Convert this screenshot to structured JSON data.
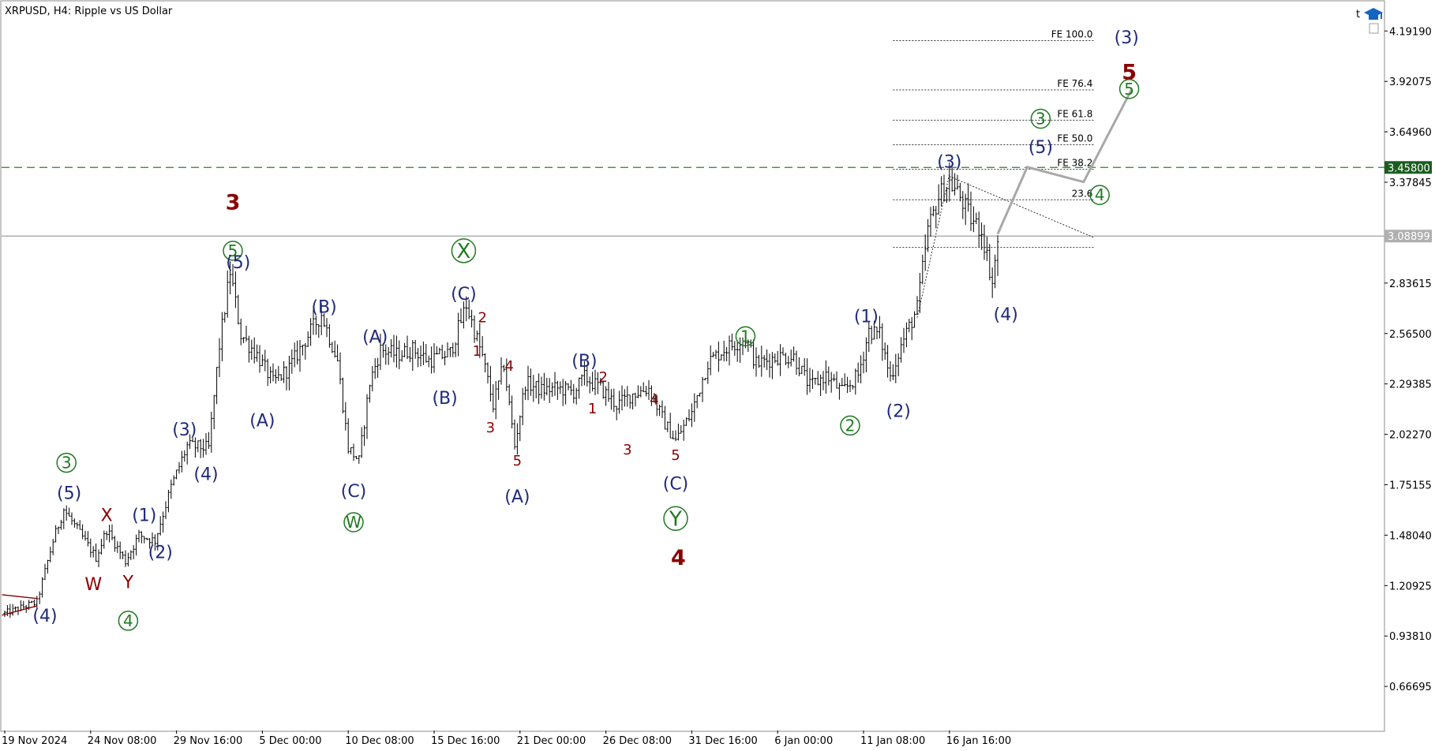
{
  "chart_data": {
    "type": "candlestick-ohlc",
    "title": "XRPUSD, H4:  Ripple vs US Dollar",
    "symbol": "XRPUSD",
    "timeframe": "H4",
    "description": "Ripple vs US Dollar",
    "ylim": [
      0.43,
      4.35
    ],
    "y_ticks": [
      "4.19190",
      "3.92075",
      "3.64960",
      "3.37845",
      "2.83615",
      "2.56500",
      "2.29385",
      "2.02270",
      "1.75155",
      "1.48040",
      "1.20925",
      "0.93810",
      "0.66695"
    ],
    "x_ticks": [
      "19 Nov 2024",
      "24 Nov 08:00",
      "29 Nov 16:00",
      "5 Dec 00:00",
      "10 Dec 08:00",
      "15 Dec 16:00",
      "21 Dec 00:00",
      "26 Dec 08:00",
      "31 Dec 16:00",
      "6 Jan 00:00",
      "11 Jan 08:00",
      "16 Jan 16:00"
    ],
    "x_tick_bar_index": [
      0,
      32,
      64,
      96,
      128,
      160,
      192,
      224,
      256,
      288,
      320,
      352
    ],
    "horizontal_lines": [
      {
        "price": 3.458,
        "label": "3.45800",
        "style": "dashed",
        "color": "#2e7d32"
      },
      {
        "price": 3.08899,
        "label": "3.08899",
        "style": "solid",
        "color": "#a0a0a0"
      }
    ],
    "fib_levels": [
      {
        "label": "FE 100.0",
        "price": 4.14
      },
      {
        "label": "FE 76.4",
        "price": 3.875
      },
      {
        "label": "FE 61.8",
        "price": 3.712
      },
      {
        "label": "FE 50.0",
        "price": 3.58
      },
      {
        "label": "FE 38.2",
        "price": 3.448
      },
      {
        "label": "23.6",
        "price": 3.284
      },
      {
        "label": "",
        "price": 3.028
      }
    ],
    "fib_x_range": [
      331,
      406
    ],
    "series": [
      {
        "name": "price",
        "points": [
          [
            0,
            1.06
          ],
          [
            12,
            1.12
          ],
          [
            18,
            1.45
          ],
          [
            22,
            1.62
          ],
          [
            28,
            1.49
          ],
          [
            34,
            1.36
          ],
          [
            38,
            1.51
          ],
          [
            45,
            1.34
          ],
          [
            50,
            1.48
          ],
          [
            56,
            1.45
          ],
          [
            62,
            1.74
          ],
          [
            68,
            1.96
          ],
          [
            76,
            1.95
          ],
          [
            80,
            2.5
          ],
          [
            84,
            2.9
          ],
          [
            88,
            2.56
          ],
          [
            94,
            2.45
          ],
          [
            100,
            2.3
          ],
          [
            106,
            2.38
          ],
          [
            112,
            2.53
          ],
          [
            118,
            2.67
          ],
          [
            124,
            2.42
          ],
          [
            128,
            1.95
          ],
          [
            132,
            1.88
          ],
          [
            136,
            2.3
          ],
          [
            140,
            2.48
          ],
          [
            146,
            2.45
          ],
          [
            152,
            2.48
          ],
          [
            158,
            2.42
          ],
          [
            166,
            2.46
          ],
          [
            172,
            2.72
          ],
          [
            178,
            2.44
          ],
          [
            182,
            2.18
          ],
          [
            186,
            2.4
          ],
          [
            190,
            1.96
          ],
          [
            194,
            2.3
          ],
          [
            200,
            2.26
          ],
          [
            206,
            2.27
          ],
          [
            212,
            2.25
          ],
          [
            216,
            2.33
          ],
          [
            222,
            2.27
          ],
          [
            228,
            2.18
          ],
          [
            234,
            2.24
          ],
          [
            240,
            2.27
          ],
          [
            246,
            2.08
          ],
          [
            250,
            1.99
          ],
          [
            256,
            2.14
          ],
          [
            262,
            2.41
          ],
          [
            268,
            2.48
          ],
          [
            276,
            2.54
          ],
          [
            280,
            2.4
          ],
          [
            288,
            2.44
          ],
          [
            294,
            2.44
          ],
          [
            300,
            2.28
          ],
          [
            306,
            2.34
          ],
          [
            312,
            2.25
          ],
          [
            318,
            2.34
          ],
          [
            322,
            2.58
          ],
          [
            326,
            2.56
          ],
          [
            330,
            2.33
          ],
          [
            334,
            2.5
          ],
          [
            340,
            2.7
          ],
          [
            344,
            3.12
          ],
          [
            348,
            3.3
          ],
          [
            352,
            3.38
          ],
          [
            356,
            3.3
          ],
          [
            360,
            3.18
          ],
          [
            364,
            3.12
          ],
          [
            368,
            2.84
          ],
          [
            370,
            3.06
          ]
        ]
      }
    ],
    "projection_path": [
      [
        370,
        3.1
      ],
      [
        381,
        3.46
      ],
      [
        402,
        3.38
      ],
      [
        420,
        3.88
      ]
    ],
    "triangle_lines": [
      {
        "from": [
          -1,
          1.16
        ],
        "to": [
          12,
          1.14
        ],
        "color": "#8b0000"
      },
      {
        "from": [
          -1,
          1.05
        ],
        "to": [
          12,
          1.1
        ],
        "color": "#8b0000"
      },
      {
        "from": [
          352,
          3.41
        ],
        "to": [
          406,
          3.08
        ],
        "color": "#000000"
      },
      {
        "from": [
          340,
          2.65
        ],
        "to": [
          352,
          3.42
        ],
        "color": "#000000"
      }
    ],
    "wave_labels": [
      {
        "text": "(4)",
        "x": 15,
        "y": 1.05,
        "color": "#1f2a7a",
        "size": "normal"
      },
      {
        "text": "(5)",
        "x": 24,
        "y": 1.71,
        "color": "#1f2a7a",
        "size": "normal"
      },
      {
        "text": "3",
        "x": 23,
        "y": 1.87,
        "color": "#1f7a1f",
        "size": "circled"
      },
      {
        "text": "W",
        "x": 33,
        "y": 1.22,
        "color": "#8b0000",
        "size": "normal"
      },
      {
        "text": "X",
        "x": 38,
        "y": 1.59,
        "color": "#8b0000",
        "size": "normal"
      },
      {
        "text": "Y",
        "x": 46,
        "y": 1.23,
        "color": "#8b0000",
        "size": "normal"
      },
      {
        "text": "4",
        "x": 46,
        "y": 1.02,
        "color": "#1f7a1f",
        "size": "circled"
      },
      {
        "text": "(1)",
        "x": 52,
        "y": 1.59,
        "color": "#1f2a7a",
        "size": "normal"
      },
      {
        "text": "(2)",
        "x": 58,
        "y": 1.39,
        "color": "#1f2a7a",
        "size": "normal"
      },
      {
        "text": "(3)",
        "x": 67,
        "y": 2.05,
        "color": "#1f2a7a",
        "size": "normal"
      },
      {
        "text": "(4)",
        "x": 75,
        "y": 1.81,
        "color": "#1f2a7a",
        "size": "normal"
      },
      {
        "text": "3",
        "x": 85,
        "y": 3.27,
        "color": "#8b0000",
        "size": "big"
      },
      {
        "text": "5",
        "x": 85,
        "y": 3.01,
        "color": "#1f7a1f",
        "size": "circled"
      },
      {
        "text": "(5)",
        "x": 87,
        "y": 2.95,
        "color": "#1f2a7a",
        "size": "normal"
      },
      {
        "text": "(A)",
        "x": 96,
        "y": 2.1,
        "color": "#1f2a7a",
        "size": "normal"
      },
      {
        "text": "(B)",
        "x": 119,
        "y": 2.71,
        "color": "#1f2a7a",
        "size": "normal"
      },
      {
        "text": "(A)",
        "x": 138,
        "y": 2.55,
        "color": "#1f2a7a",
        "size": "normal"
      },
      {
        "text": "(C)",
        "x": 130,
        "y": 1.72,
        "color": "#1f2a7a",
        "size": "normal"
      },
      {
        "text": "W",
        "x": 130,
        "y": 1.55,
        "color": "#1f7a1f",
        "size": "circled"
      },
      {
        "text": "(B)",
        "x": 164,
        "y": 2.22,
        "color": "#1f2a7a",
        "size": "normal"
      },
      {
        "text": "(C)",
        "x": 171,
        "y": 2.78,
        "color": "#1f2a7a",
        "size": "normal"
      },
      {
        "text": "X",
        "x": 171,
        "y": 3.01,
        "color": "#1f7a1f",
        "size": "circled-big"
      },
      {
        "text": "2",
        "x": 178,
        "y": 2.65,
        "color": "#8b0000",
        "size": "small"
      },
      {
        "text": "1",
        "x": 176,
        "y": 2.47,
        "color": "#8b0000",
        "size": "small"
      },
      {
        "text": "4",
        "x": 188,
        "y": 2.39,
        "color": "#8b0000",
        "size": "small"
      },
      {
        "text": "3",
        "x": 181,
        "y": 2.06,
        "color": "#8b0000",
        "size": "small"
      },
      {
        "text": "5",
        "x": 191,
        "y": 1.88,
        "color": "#8b0000",
        "size": "small"
      },
      {
        "text": "(A)",
        "x": 191,
        "y": 1.69,
        "color": "#1f2a7a",
        "size": "normal"
      },
      {
        "text": "(B)",
        "x": 216,
        "y": 2.42,
        "color": "#1f2a7a",
        "size": "normal"
      },
      {
        "text": "2",
        "x": 223,
        "y": 2.33,
        "color": "#8b0000",
        "size": "small"
      },
      {
        "text": "1",
        "x": 219,
        "y": 2.16,
        "color": "#8b0000",
        "size": "small"
      },
      {
        "text": "4",
        "x": 242,
        "y": 2.21,
        "color": "#8b0000",
        "size": "small"
      },
      {
        "text": "3",
        "x": 232,
        "y": 1.94,
        "color": "#8b0000",
        "size": "small"
      },
      {
        "text": "5",
        "x": 250,
        "y": 1.91,
        "color": "#8b0000",
        "size": "small"
      },
      {
        "text": "(C)",
        "x": 250,
        "y": 1.76,
        "color": "#1f2a7a",
        "size": "normal"
      },
      {
        "text": "Y",
        "x": 250,
        "y": 1.57,
        "color": "#1f7a1f",
        "size": "circled-big"
      },
      {
        "text": "4",
        "x": 251,
        "y": 1.36,
        "color": "#8b0000",
        "size": "big"
      },
      {
        "text": "1",
        "x": 276,
        "y": 2.55,
        "color": "#1f7a1f",
        "size": "circled"
      },
      {
        "text": "2",
        "x": 315,
        "y": 2.07,
        "color": "#1f7a1f",
        "size": "circled"
      },
      {
        "text": "(1)",
        "x": 321,
        "y": 2.66,
        "color": "#1f2a7a",
        "size": "normal"
      },
      {
        "text": "(2)",
        "x": 333,
        "y": 2.15,
        "color": "#1f2a7a",
        "size": "normal"
      },
      {
        "text": "(3)",
        "x": 352,
        "y": 3.49,
        "color": "#1f2a7a",
        "size": "normal"
      },
      {
        "text": "(4)",
        "x": 373,
        "y": 2.67,
        "color": "#1f2a7a",
        "size": "normal"
      },
      {
        "text": "(5)",
        "x": 386,
        "y": 3.57,
        "color": "#1f2a7a",
        "size": "normal"
      },
      {
        "text": "3",
        "x": 386,
        "y": 3.72,
        "color": "#1f7a1f",
        "size": "circled"
      },
      {
        "text": "4",
        "x": 408,
        "y": 3.31,
        "color": "#1f7a1f",
        "size": "circled"
      },
      {
        "text": "(3)",
        "x": 418,
        "y": 4.16,
        "color": "#1f2a7a",
        "size": "normal"
      },
      {
        "text": "5",
        "x": 419,
        "y": 3.97,
        "color": "#8b0000",
        "size": "big"
      },
      {
        "text": "5",
        "x": 419,
        "y": 3.88,
        "color": "#1f7a1f",
        "size": "circled"
      }
    ]
  }
}
